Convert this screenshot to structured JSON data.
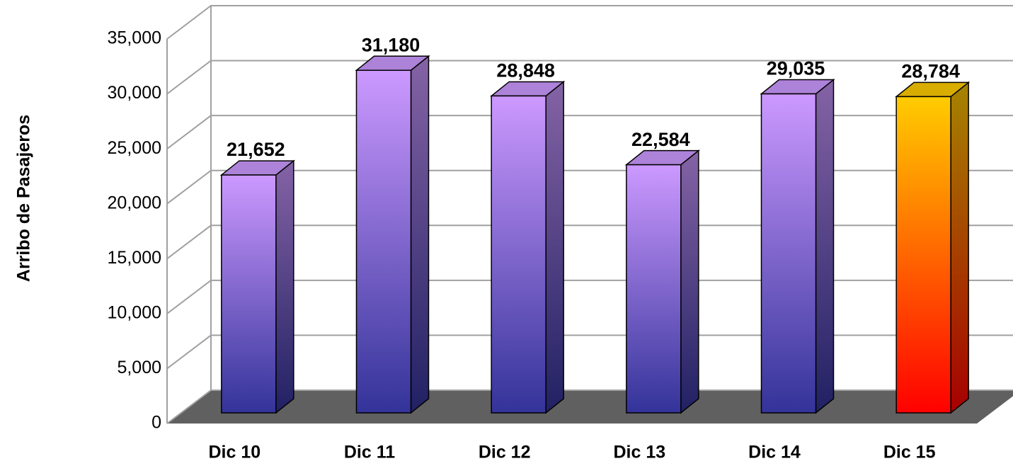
{
  "chart_data": {
    "type": "bar3d",
    "y_label": "Arribo de Pasajeros",
    "categories": [
      "Dic 10",
      "Dic 11",
      "Dic 12",
      "Dic 13",
      "Dic 14",
      "Dic 15"
    ],
    "values": [
      21652,
      31180,
      28848,
      22584,
      29035,
      28784
    ],
    "value_labels": [
      "21,652",
      "31,180",
      "28,848",
      "22,584",
      "29,035",
      "28,784"
    ],
    "bar_colors": [
      [
        "#cc99ff",
        "#333399"
      ],
      [
        "#cc99ff",
        "#333399"
      ],
      [
        "#cc99ff",
        "#333399"
      ],
      [
        "#cc99ff",
        "#333399"
      ],
      [
        "#cc99ff",
        "#333399"
      ],
      [
        "#ffcc00",
        "#ff0000"
      ]
    ],
    "ylim": [
      0,
      35000
    ],
    "yticks": [
      0,
      {
        "value": 5000,
        "label": "5,000"
      },
      {
        "value": 10000,
        "label": "10,000"
      },
      {
        "value": 15000,
        "label": "15,000"
      },
      {
        "value": 20000,
        "label": "20,000"
      },
      {
        "value": 25000,
        "label": "25,000"
      },
      {
        "value": 30000,
        "label": "30,000"
      },
      {
        "value": 35000,
        "label": "35,000"
      }
    ],
    "grid": true,
    "floor_color": "#606060"
  }
}
